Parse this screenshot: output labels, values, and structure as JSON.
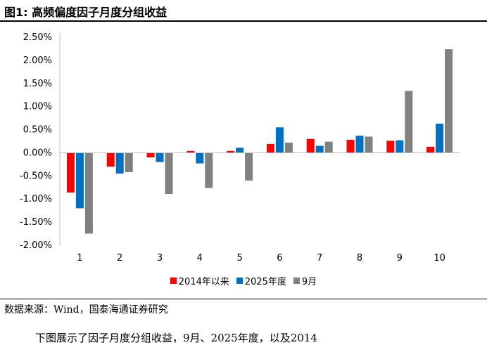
{
  "figure": {
    "title": "图1:  高频偏度因子月度分组收益",
    "source": "数据来源：Wind，国泰海通证券研究",
    "body_text": "下图展示了因子月度分组收益，9月、2025年度，以及2014"
  },
  "chart_data": {
    "type": "bar",
    "categories": [
      "1",
      "2",
      "3",
      "4",
      "5",
      "6",
      "7",
      "8",
      "9",
      "10"
    ],
    "series": [
      {
        "name": "2014年以来",
        "color": "#ff0000",
        "values": [
          -0.86,
          -0.3,
          -0.1,
          0.04,
          0.04,
          0.19,
          0.3,
          0.28,
          0.26,
          0.13
        ]
      },
      {
        "name": "2025年度",
        "color": "#0070c0",
        "values": [
          -1.2,
          -0.45,
          -0.2,
          -0.23,
          0.11,
          0.55,
          0.15,
          0.37,
          0.27,
          0.63
        ]
      },
      {
        "name": "9月",
        "color": "#808080",
        "values": [
          -1.75,
          -0.42,
          -0.89,
          -0.76,
          -0.6,
          0.22,
          0.24,
          0.35,
          1.34,
          2.24
        ]
      }
    ],
    "ylim": [
      -2.0,
      2.5
    ],
    "yticks": [
      "2.50%",
      "2.00%",
      "1.50%",
      "1.00%",
      "0.50%",
      "0.00%",
      "-0.50%",
      "-1.00%",
      "-1.50%",
      "-2.00%"
    ],
    "legend_position": "bottom",
    "grid": false
  }
}
